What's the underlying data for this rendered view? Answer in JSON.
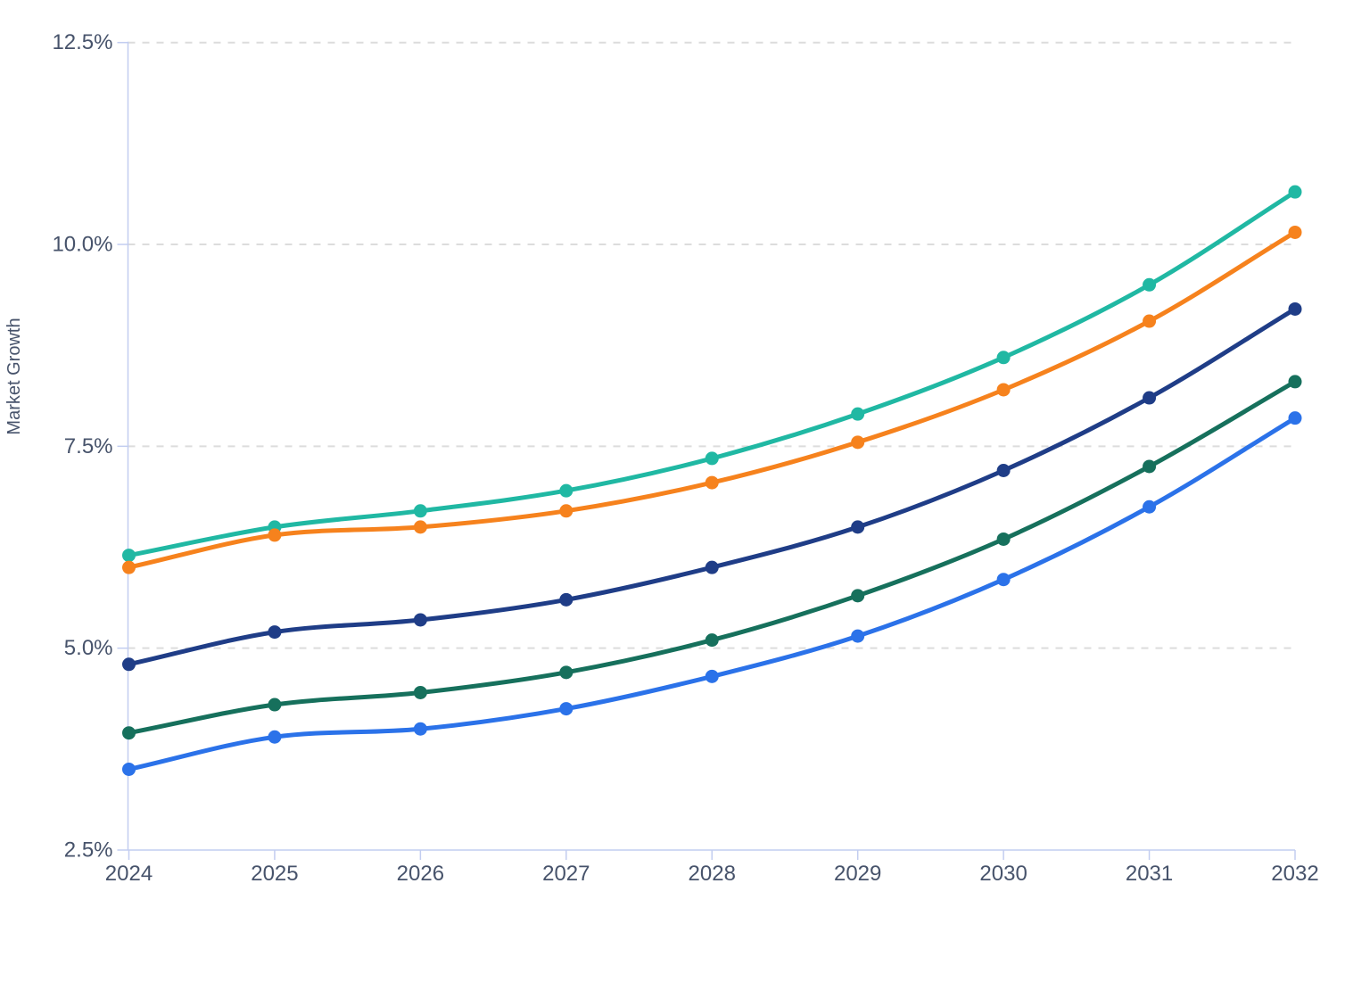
{
  "chart_data": {
    "type": "line",
    "title": "",
    "xlabel": "",
    "ylabel": "Market Growth",
    "unit": "%",
    "categories": [
      "2024",
      "2025",
      "2026",
      "2027",
      "2028",
      "2029",
      "2030",
      "2031",
      "2032"
    ],
    "y_ticks": [
      2.5,
      5.0,
      7.5,
      10.0,
      12.5
    ],
    "y_tick_labels": [
      "2.5%",
      "5.0%",
      "7.5%",
      "10.0%",
      "12.5%"
    ],
    "ylim": [
      2.5,
      12.5
    ],
    "grid": "horizontal-dashed",
    "legend_position": "none",
    "marker": "circle",
    "series": [
      {
        "name": "teal",
        "color": "#20b8a3",
        "values": [
          6.15,
          6.5,
          6.7,
          6.95,
          7.35,
          7.9,
          8.6,
          9.5,
          10.65
        ]
      },
      {
        "name": "orange",
        "color": "#f6821d",
        "values": [
          6.0,
          6.4,
          6.5,
          6.7,
          7.05,
          7.55,
          8.2,
          9.05,
          10.15
        ]
      },
      {
        "name": "navy",
        "color": "#1f3d87",
        "values": [
          4.8,
          5.2,
          5.35,
          5.6,
          6.0,
          6.5,
          7.2,
          8.1,
          9.2
        ]
      },
      {
        "name": "dark-green",
        "color": "#16705c",
        "values": [
          3.95,
          4.3,
          4.45,
          4.7,
          5.1,
          5.65,
          6.35,
          7.25,
          8.3
        ]
      },
      {
        "name": "blue",
        "color": "#2b72e9",
        "values": [
          3.5,
          3.9,
          4.0,
          4.25,
          4.65,
          5.15,
          5.85,
          6.75,
          7.85
        ]
      }
    ]
  },
  "style": {
    "axis_color": "#c2cdf0",
    "grid_color": "#dcdcdc",
    "tick_label_color": "#47536b",
    "background": "#ffffff"
  }
}
